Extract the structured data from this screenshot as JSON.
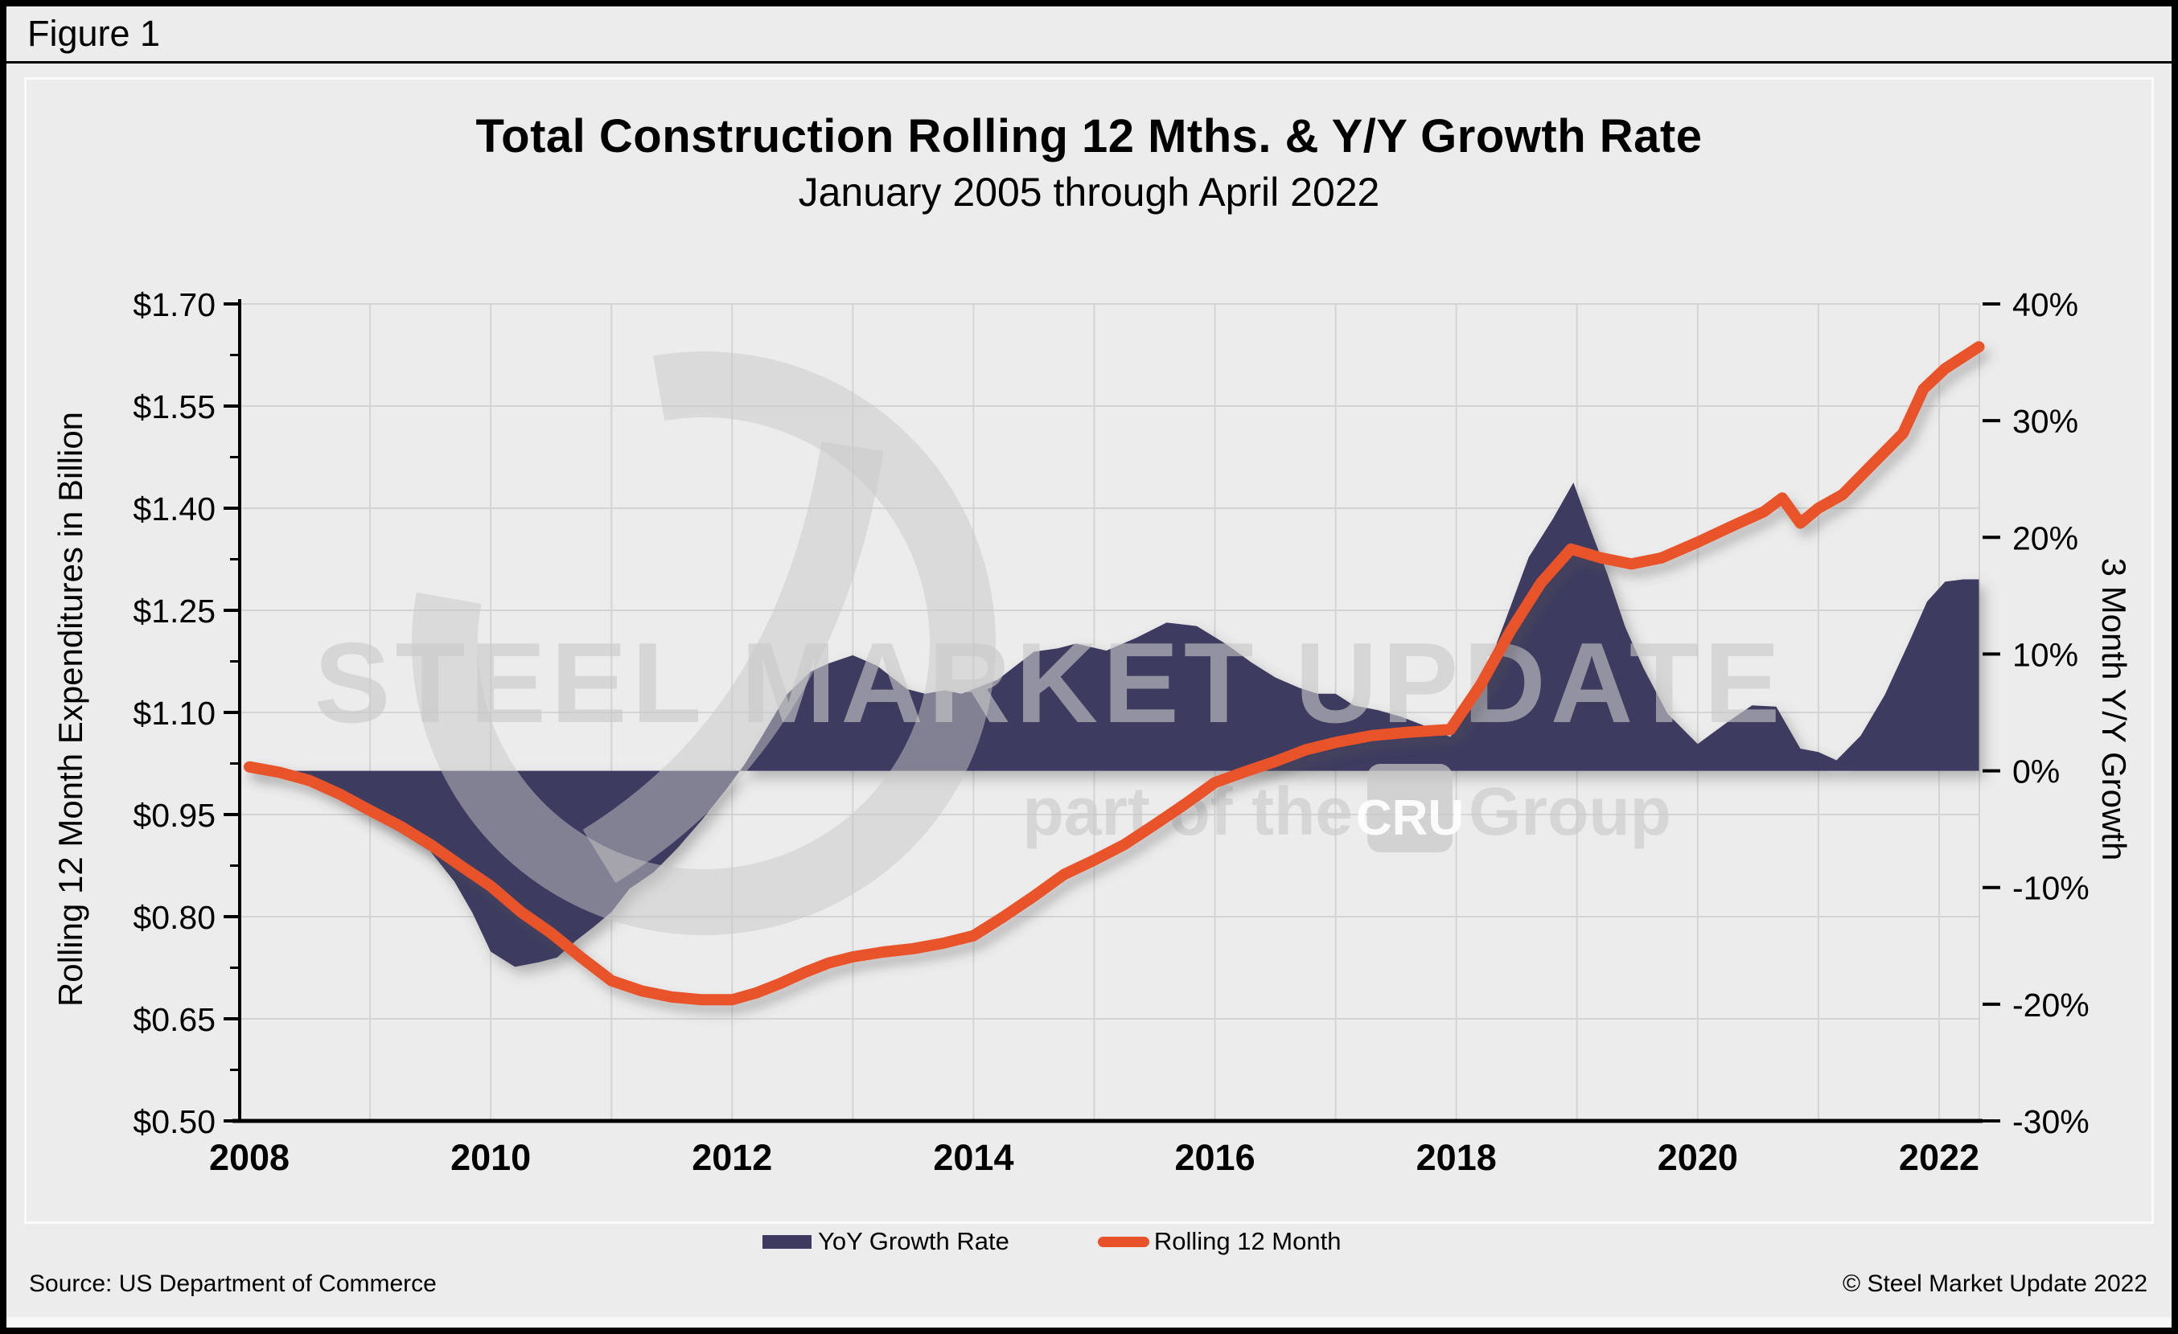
{
  "figure_label": "Figure 1",
  "chart": {
    "title": "Total Construction Rolling 12 Mths. & Y/Y Growth Rate",
    "subtitle": "January 2005 through April 2022",
    "left_axis_title": "Rolling 12 Month Expenditures in Billion",
    "right_axis_title": "3 Month Y/Y Growth"
  },
  "legend": {
    "items": [
      {
        "label": "YoY Growth Rate",
        "color": "#3e3a5f"
      },
      {
        "label": "Rolling 12 Month",
        "color": "#e8522a"
      }
    ]
  },
  "watermark": {
    "line1": "STEEL MARKET UPDATE",
    "line2_pre": "part of the",
    "line2_box": "CRU",
    "line2_post": "Group"
  },
  "footer": {
    "source": "Source: US Department of Commerce",
    "copyright": "© Steel Market Update 2022"
  },
  "colors": {
    "area": "#3e3a5f",
    "line": "#e8522a",
    "background": "#ececec",
    "grid": "#d4d4d4",
    "axis": "#000000",
    "watermark": "#c8c8c8"
  },
  "chart_data": {
    "type": "combo",
    "title": "Total Construction Rolling 12 Mths. & Y/Y Growth Rate",
    "subtitle": "January 2005 through April 2022",
    "x_axis": {
      "labels": [
        "2008",
        "2010",
        "2012",
        "2014",
        "2016",
        "2018",
        "2020",
        "2022"
      ],
      "label_years": [
        2008,
        2010,
        2012,
        2014,
        2016,
        2018,
        2020,
        2022
      ],
      "range": [
        2008,
        2022.33
      ],
      "gridlines": "yearly"
    },
    "left_axis": {
      "title": "Rolling 12 Month Expenditures in Billion",
      "range": [
        0.5,
        1.7
      ],
      "ticks": [
        {
          "label": "$1.70",
          "v": 1.7
        },
        {
          "label": "$1.55",
          "v": 1.55
        },
        {
          "label": "$1.40",
          "v": 1.4
        },
        {
          "label": "$1.25",
          "v": 1.25
        },
        {
          "label": "$1.10",
          "v": 1.1
        },
        {
          "label": "$0.95",
          "v": 0.95
        },
        {
          "label": "$0.80",
          "v": 0.8
        },
        {
          "label": "$0.65",
          "v": 0.65
        },
        {
          "label": "$0.50",
          "v": 0.5
        }
      ]
    },
    "right_axis": {
      "title": "3 Month Y/Y Growth",
      "range": [
        -30,
        40
      ],
      "ticks": [
        {
          "label": "40%",
          "v": 40
        },
        {
          "label": "30%",
          "v": 30
        },
        {
          "label": "20%",
          "v": 20
        },
        {
          "label": "10%",
          "v": 10
        },
        {
          "label": "0%",
          "v": 0
        },
        {
          "label": "-10%",
          "v": -10
        },
        {
          "label": "-20%",
          "v": -20
        },
        {
          "label": "-30%",
          "v": -30
        }
      ]
    },
    "series": [
      {
        "name": "YoY Growth Rate",
        "type": "area",
        "axis": "right",
        "unit": "%",
        "color": "#3e3a5f",
        "points": [
          [
            2008.0,
            0.4
          ],
          [
            2008.3,
            0.2
          ],
          [
            2008.55,
            -0.8
          ],
          [
            2008.8,
            -2.3
          ],
          [
            2009.0,
            -3.8
          ],
          [
            2009.25,
            -5.3
          ],
          [
            2009.5,
            -6.9
          ],
          [
            2009.7,
            -9.5
          ],
          [
            2009.85,
            -12.2
          ],
          [
            2010.0,
            -15.5
          ],
          [
            2010.2,
            -16.8
          ],
          [
            2010.4,
            -16.4
          ],
          [
            2010.55,
            -16.0
          ],
          [
            2010.7,
            -14.6
          ],
          [
            2010.85,
            -13.4
          ],
          [
            2011.0,
            -12.1
          ],
          [
            2011.15,
            -10.1
          ],
          [
            2011.35,
            -8.7
          ],
          [
            2011.55,
            -6.6
          ],
          [
            2011.75,
            -4.2
          ],
          [
            2011.95,
            -1.6
          ],
          [
            2012.1,
            0.5
          ],
          [
            2012.25,
            3.0
          ],
          [
            2012.45,
            6.5
          ],
          [
            2012.65,
            8.5
          ],
          [
            2012.8,
            9.2
          ],
          [
            2013.0,
            9.9
          ],
          [
            2013.2,
            9.0
          ],
          [
            2013.45,
            7.0
          ],
          [
            2013.6,
            6.6
          ],
          [
            2013.76,
            6.9
          ],
          [
            2013.9,
            6.6
          ],
          [
            2014.2,
            7.8
          ],
          [
            2014.5,
            10.2
          ],
          [
            2014.7,
            10.5
          ],
          [
            2014.85,
            10.9
          ],
          [
            2015.1,
            10.3
          ],
          [
            2015.35,
            11.4
          ],
          [
            2015.6,
            12.7
          ],
          [
            2015.85,
            12.4
          ],
          [
            2016.1,
            10.8
          ],
          [
            2016.3,
            9.3
          ],
          [
            2016.5,
            8.0
          ],
          [
            2016.7,
            7.1
          ],
          [
            2016.85,
            6.6
          ],
          [
            2017.0,
            6.6
          ],
          [
            2017.15,
            5.6
          ],
          [
            2017.35,
            5.2
          ],
          [
            2017.55,
            4.6
          ],
          [
            2017.75,
            3.8
          ],
          [
            2017.95,
            2.9
          ],
          [
            2018.15,
            6.0
          ],
          [
            2018.4,
            12.7
          ],
          [
            2018.6,
            18.3
          ],
          [
            2018.8,
            21.6
          ],
          [
            2018.97,
            24.7
          ],
          [
            2019.1,
            21.0
          ],
          [
            2019.25,
            16.9
          ],
          [
            2019.4,
            12.3
          ],
          [
            2019.55,
            8.8
          ],
          [
            2019.75,
            4.9
          ],
          [
            2020.0,
            2.3
          ],
          [
            2020.25,
            4.2
          ],
          [
            2020.45,
            5.6
          ],
          [
            2020.65,
            5.5
          ],
          [
            2020.85,
            1.9
          ],
          [
            2021.0,
            1.6
          ],
          [
            2021.15,
            0.9
          ],
          [
            2021.35,
            3.0
          ],
          [
            2021.55,
            6.5
          ],
          [
            2021.75,
            11.0
          ],
          [
            2021.9,
            14.5
          ],
          [
            2022.05,
            16.2
          ],
          [
            2022.2,
            16.4
          ],
          [
            2022.33,
            16.4
          ]
        ]
      },
      {
        "name": "Rolling 12 Month",
        "type": "line",
        "axis": "left",
        "unit": "$ billion",
        "color": "#e8522a",
        "points": [
          [
            2008.0,
            1.02
          ],
          [
            2008.25,
            1.012
          ],
          [
            2008.5,
            1.0
          ],
          [
            2008.75,
            0.98
          ],
          [
            2009.0,
            0.956
          ],
          [
            2009.25,
            0.933
          ],
          [
            2009.5,
            0.906
          ],
          [
            2009.75,
            0.875
          ],
          [
            2010.0,
            0.845
          ],
          [
            2010.25,
            0.807
          ],
          [
            2010.5,
            0.776
          ],
          [
            2010.75,
            0.74
          ],
          [
            2011.0,
            0.706
          ],
          [
            2011.25,
            0.691
          ],
          [
            2011.5,
            0.682
          ],
          [
            2011.75,
            0.678
          ],
          [
            2012.0,
            0.678
          ],
          [
            2012.2,
            0.688
          ],
          [
            2012.4,
            0.702
          ],
          [
            2012.6,
            0.718
          ],
          [
            2012.8,
            0.732
          ],
          [
            2013.0,
            0.741
          ],
          [
            2013.25,
            0.748
          ],
          [
            2013.5,
            0.753
          ],
          [
            2013.75,
            0.761
          ],
          [
            2014.0,
            0.772
          ],
          [
            2014.25,
            0.8
          ],
          [
            2014.5,
            0.83
          ],
          [
            2014.75,
            0.862
          ],
          [
            2015.0,
            0.883
          ],
          [
            2015.25,
            0.906
          ],
          [
            2015.5,
            0.935
          ],
          [
            2015.75,
            0.965
          ],
          [
            2016.0,
            0.997
          ],
          [
            2016.25,
            1.013
          ],
          [
            2016.5,
            1.028
          ],
          [
            2016.75,
            1.045
          ],
          [
            2017.0,
            1.056
          ],
          [
            2017.3,
            1.066
          ],
          [
            2017.6,
            1.071
          ],
          [
            2017.95,
            1.075
          ],
          [
            2018.2,
            1.14
          ],
          [
            2018.45,
            1.22
          ],
          [
            2018.7,
            1.29
          ],
          [
            2018.95,
            1.34
          ],
          [
            2019.2,
            1.327
          ],
          [
            2019.45,
            1.318
          ],
          [
            2019.7,
            1.327
          ],
          [
            2020.0,
            1.35
          ],
          [
            2020.3,
            1.375
          ],
          [
            2020.55,
            1.395
          ],
          [
            2020.7,
            1.415
          ],
          [
            2020.85,
            1.378
          ],
          [
            2021.0,
            1.4
          ],
          [
            2021.2,
            1.42
          ],
          [
            2021.45,
            1.465
          ],
          [
            2021.7,
            1.51
          ],
          [
            2021.87,
            1.575
          ],
          [
            2022.05,
            1.605
          ],
          [
            2022.33,
            1.637
          ]
        ]
      }
    ]
  }
}
